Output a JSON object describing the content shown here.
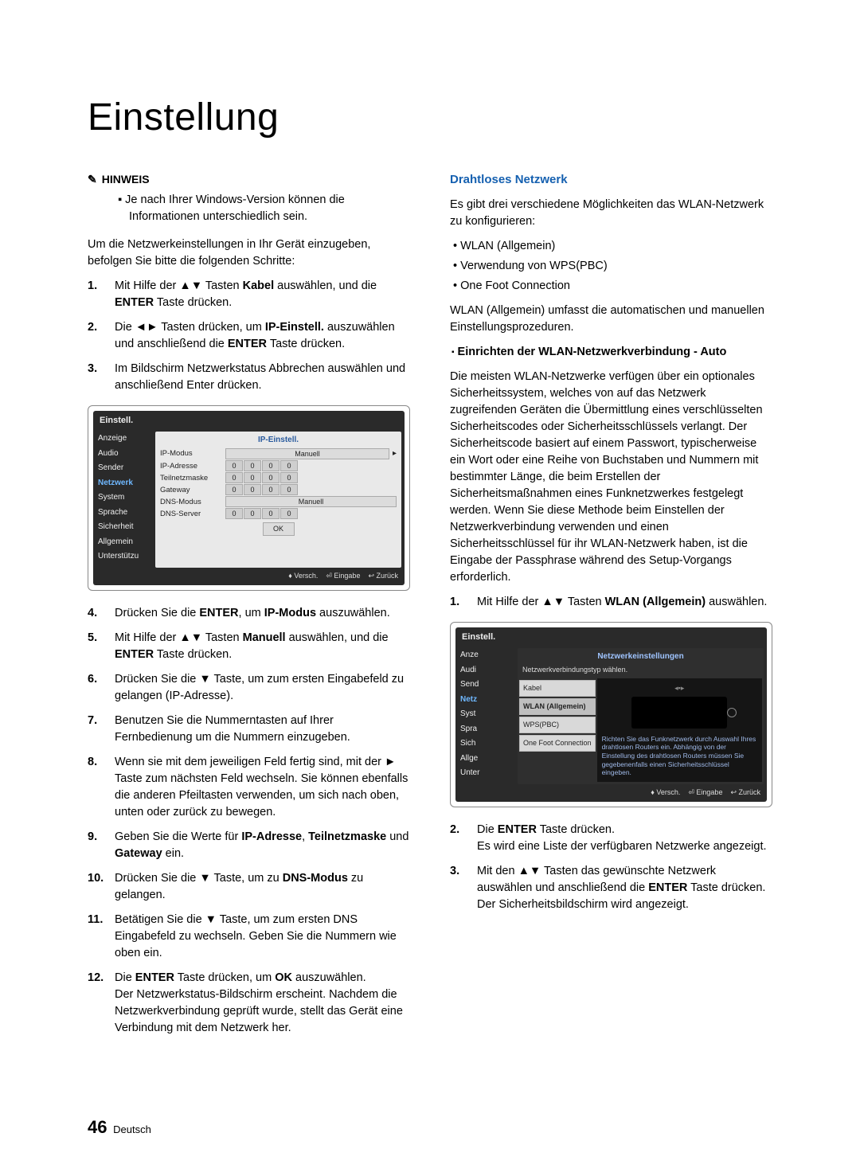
{
  "title": "Einstellung",
  "leftCol": {
    "hinweisLabel": "HINWEIS",
    "hinweisNote": "Je nach Ihrer Windows-Version können die Informationen unterschiedlich sein.",
    "intro": "Um die Netzwerkeinstellungen in Ihr Gerät einzugeben, befolgen Sie bitte die folgenden Schritte:",
    "steps1": [
      {
        "n": "1.",
        "t": "Mit Hilfe der ▲▼ Tasten <b>Kabel</b> auswählen, und die <b>ENTER</b> Taste drücken."
      },
      {
        "n": "2.",
        "t": "Die ◄► Tasten drücken, um <b>IP-Einstell.</b> auszuwählen und anschließend die <b>ENTER</b> Taste drücken."
      },
      {
        "n": "3.",
        "t": "Im Bildschirm Netzwerkstatus Abbrechen auswählen und anschließend Enter drücken."
      }
    ],
    "steps2": [
      {
        "n": "4.",
        "t": "Drücken Sie die <b>ENTER</b>, um <b>IP-Modus</b> auszuwählen."
      },
      {
        "n": "5.",
        "t": "Mit Hilfe der ▲▼ Tasten <b>Manuell</b> auswählen, und die <b>ENTER</b> Taste drücken."
      },
      {
        "n": "6.",
        "t": "Drücken Sie die ▼ Taste, um zum ersten Eingabefeld zu gelangen (IP-Adresse)."
      },
      {
        "n": "7.",
        "t": "Benutzen Sie die Nummerntasten auf Ihrer Fernbedienung um die Nummern einzugeben."
      },
      {
        "n": "8.",
        "t": "Wenn sie mit dem jeweiligen Feld fertig sind, mit der ► Taste zum nächsten Feld wechseln. Sie können ebenfalls die anderen Pfeiltasten verwenden, um sich nach oben, unten oder zurück zu bewegen."
      },
      {
        "n": "9.",
        "t": "Geben Sie die Werte für <b>IP-Adresse</b>, <b>Teilnetzmaske</b> und <b>Gateway</b> ein."
      },
      {
        "n": "10.",
        "t": "Drücken Sie die ▼ Taste, um zu <b>DNS-Modus</b> zu gelangen."
      },
      {
        "n": "11.",
        "t": "Betätigen Sie die ▼ Taste, um zum ersten DNS Eingabefeld zu wechseln. Geben Sie die Nummern wie oben ein."
      },
      {
        "n": "12.",
        "t": "Die <b>ENTER</b> Taste drücken, um <b>OK</b> auszuwählen.<br>Der Netzwerkstatus-Bildschirm erscheint. Nachdem die Netzwerkverbindung geprüft wurde, stellt das Gerät eine Verbindung mit dem Netzwerk her."
      }
    ]
  },
  "rightCol": {
    "heading": "Drahtloses Netzwerk",
    "intro": "Es gibt drei verschiedene Möglichkeiten das WLAN-Netzwerk zu konfigurieren:",
    "bullets": [
      "WLAN (Allgemein)",
      "Verwendung von WPS(PBC)",
      "One Foot Connection"
    ],
    "after": "WLAN (Allgemein) umfasst die automatischen und manuellen Einstellungsprozeduren.",
    "subhead": "Einrichten der WLAN-Netzwerkverbindung - Auto",
    "bigPara": "Die meisten WLAN-Netzwerke verfügen über ein optionales Sicherheitssystem, welches von auf das Netzwerk zugreifenden Geräten die Übermittlung eines verschlüsselten Sicherheitscodes oder Sicherheitsschlüssels verlangt. Der Sicherheitscode basiert auf einem Passwort, typischerweise ein Wort oder eine Reihe von Buchstaben und Nummern mit bestimmter Länge, die beim Erstellen der Sicherheitsmaßnahmen eines Funknetzwerkes festgelegt werden. Wenn Sie diese Methode beim Einstellen der Netzwerkverbindung verwenden und einen Sicherheitsschlüssel für ihr WLAN-Netzwerk haben, ist die Eingabe der Passphrase während des Setup-Vorgangs erforderlich.",
    "steps": [
      {
        "n": "1.",
        "t": "Mit Hilfe der ▲▼ Tasten <b>WLAN (Allgemein)</b> auswählen."
      },
      {
        "n": "2.",
        "t": "Die <b>ENTER</b> Taste drücken.<br>Es wird eine Liste der verfügbaren Netzwerke angezeigt."
      },
      {
        "n": "3.",
        "t": "Mit den ▲▼ Tasten das gewünschte Netzwerk auswählen und anschließend die <b>ENTER</b> Taste drücken.<br>Der Sicherheitsbildschirm wird angezeigt."
      }
    ]
  },
  "shot1": {
    "header": "Einstell.",
    "menu": [
      "Anzeige",
      "Audio",
      "Sender",
      "Netzwerk",
      "System",
      "Sprache",
      "Sicherheit",
      "Allgemein",
      "Unterstützu"
    ],
    "activeIndex": 3,
    "panelTitle": "IP-Einstell.",
    "rows": {
      "ipModus": "IP-Modus",
      "ipAdresse": "IP-Adresse",
      "teilnetz": "Teilnetzmaske",
      "gateway": "Gateway",
      "dnsModus": "DNS-Modus",
      "dnsServer": "DNS-Server"
    },
    "manuell": "Manuell",
    "zero": "0",
    "ok": "OK",
    "footer": [
      "♦ Versch.",
      "⏎ Eingabe",
      "↩ Zurück"
    ]
  },
  "shot2": {
    "header": "Einstell.",
    "menu": [
      "Anze",
      "Audi",
      "Send",
      "Netz",
      "Syst",
      "Spra",
      "Sich",
      "Allge",
      "Unter"
    ],
    "panelTitle": "Netzwerkeinstellungen",
    "subtitle": "Netzwerkverbindungstyp wählen.",
    "tabs": [
      "Kabel",
      "WLAN (Allgemein)",
      "WPS(PBC)",
      "One Foot Connection"
    ],
    "selectedTab": 1,
    "desc": "Richten Sie das Funknetzwerk durch Auswahl Ihres drahtlosen Routers ein. Abhängig von der Einstellung des drahtlosen Routers müssen Sie gegebenenfalls einen Sicherheitsschlüssel eingeben.",
    "footer": [
      "♦ Versch.",
      "⏎ Eingabe",
      "↩ Zurück"
    ]
  },
  "footer": {
    "pageNum": "46",
    "lang": "Deutsch"
  },
  "colors": {
    "heading_blue": "#1560b0",
    "shot_bg": "#2a2a2a",
    "panel_bg": "#e9e9e9",
    "active_blue": "#6fb8ff"
  }
}
